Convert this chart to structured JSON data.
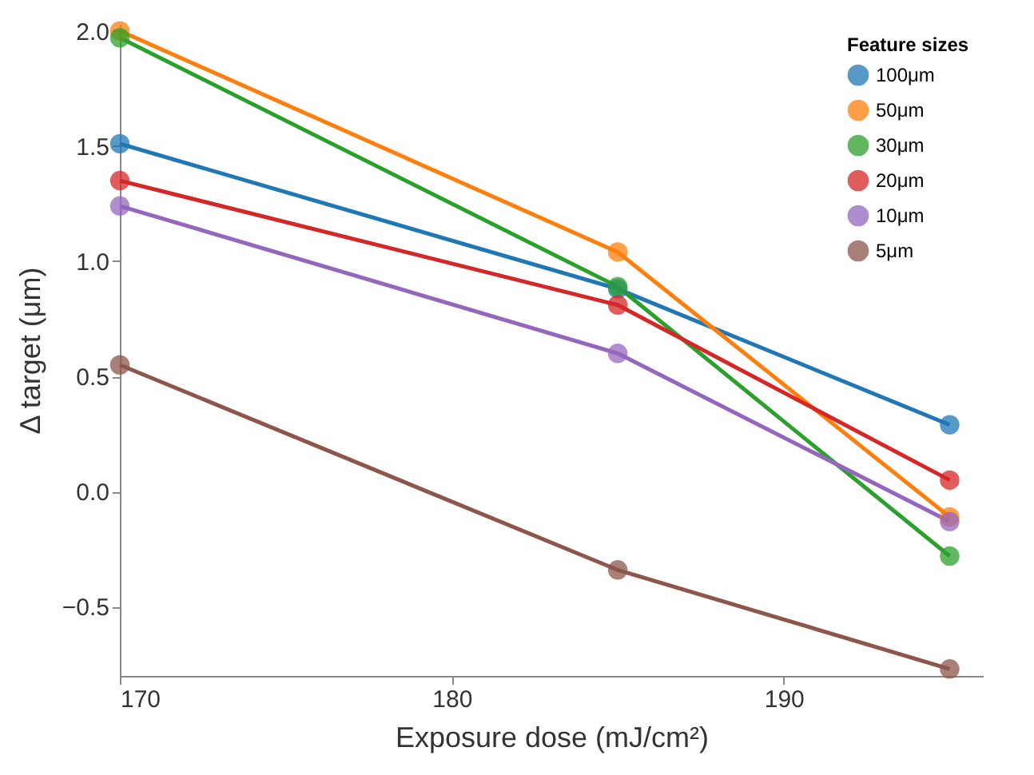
{
  "chart_data": {
    "type": "line",
    "xlabel": "Exposure dose (mJ/cm²)",
    "ylabel": "Δ target (μm)",
    "legend_title": "Feature sizes",
    "x": [
      170,
      185,
      195
    ],
    "series": [
      {
        "name": "100μm",
        "color": "#1f77b4",
        "values": [
          1.51,
          0.88,
          0.29
        ]
      },
      {
        "name": "50μm",
        "color": "#ff7f0e",
        "values": [
          2.0,
          1.04,
          -0.11
        ]
      },
      {
        "name": "30μm",
        "color": "#2ca02c",
        "values": [
          1.97,
          0.89,
          -0.28
        ]
      },
      {
        "name": "20μm",
        "color": "#d62728",
        "values": [
          1.35,
          0.81,
          0.05
        ]
      },
      {
        "name": "10μm",
        "color": "#9467bd",
        "values": [
          1.24,
          0.6,
          -0.13
        ]
      },
      {
        "name": "5μm",
        "color": "#8c564b",
        "values": [
          0.55,
          -0.34,
          -0.77
        ]
      }
    ],
    "xlim": [
      170,
      196
    ],
    "xticks": [
      170,
      180,
      190
    ],
    "ylim": [
      -0.8,
      2.03
    ],
    "yticks": [
      -0.5,
      {
        "value": 0,
        "label": "0.0"
      },
      0.5,
      {
        "value": 1,
        "label": "1.0"
      },
      1.5,
      {
        "value": 2,
        "label": "2.0"
      }
    ],
    "grid": false,
    "legend": "top right",
    "marker": "circle",
    "line_style": "solid"
  }
}
